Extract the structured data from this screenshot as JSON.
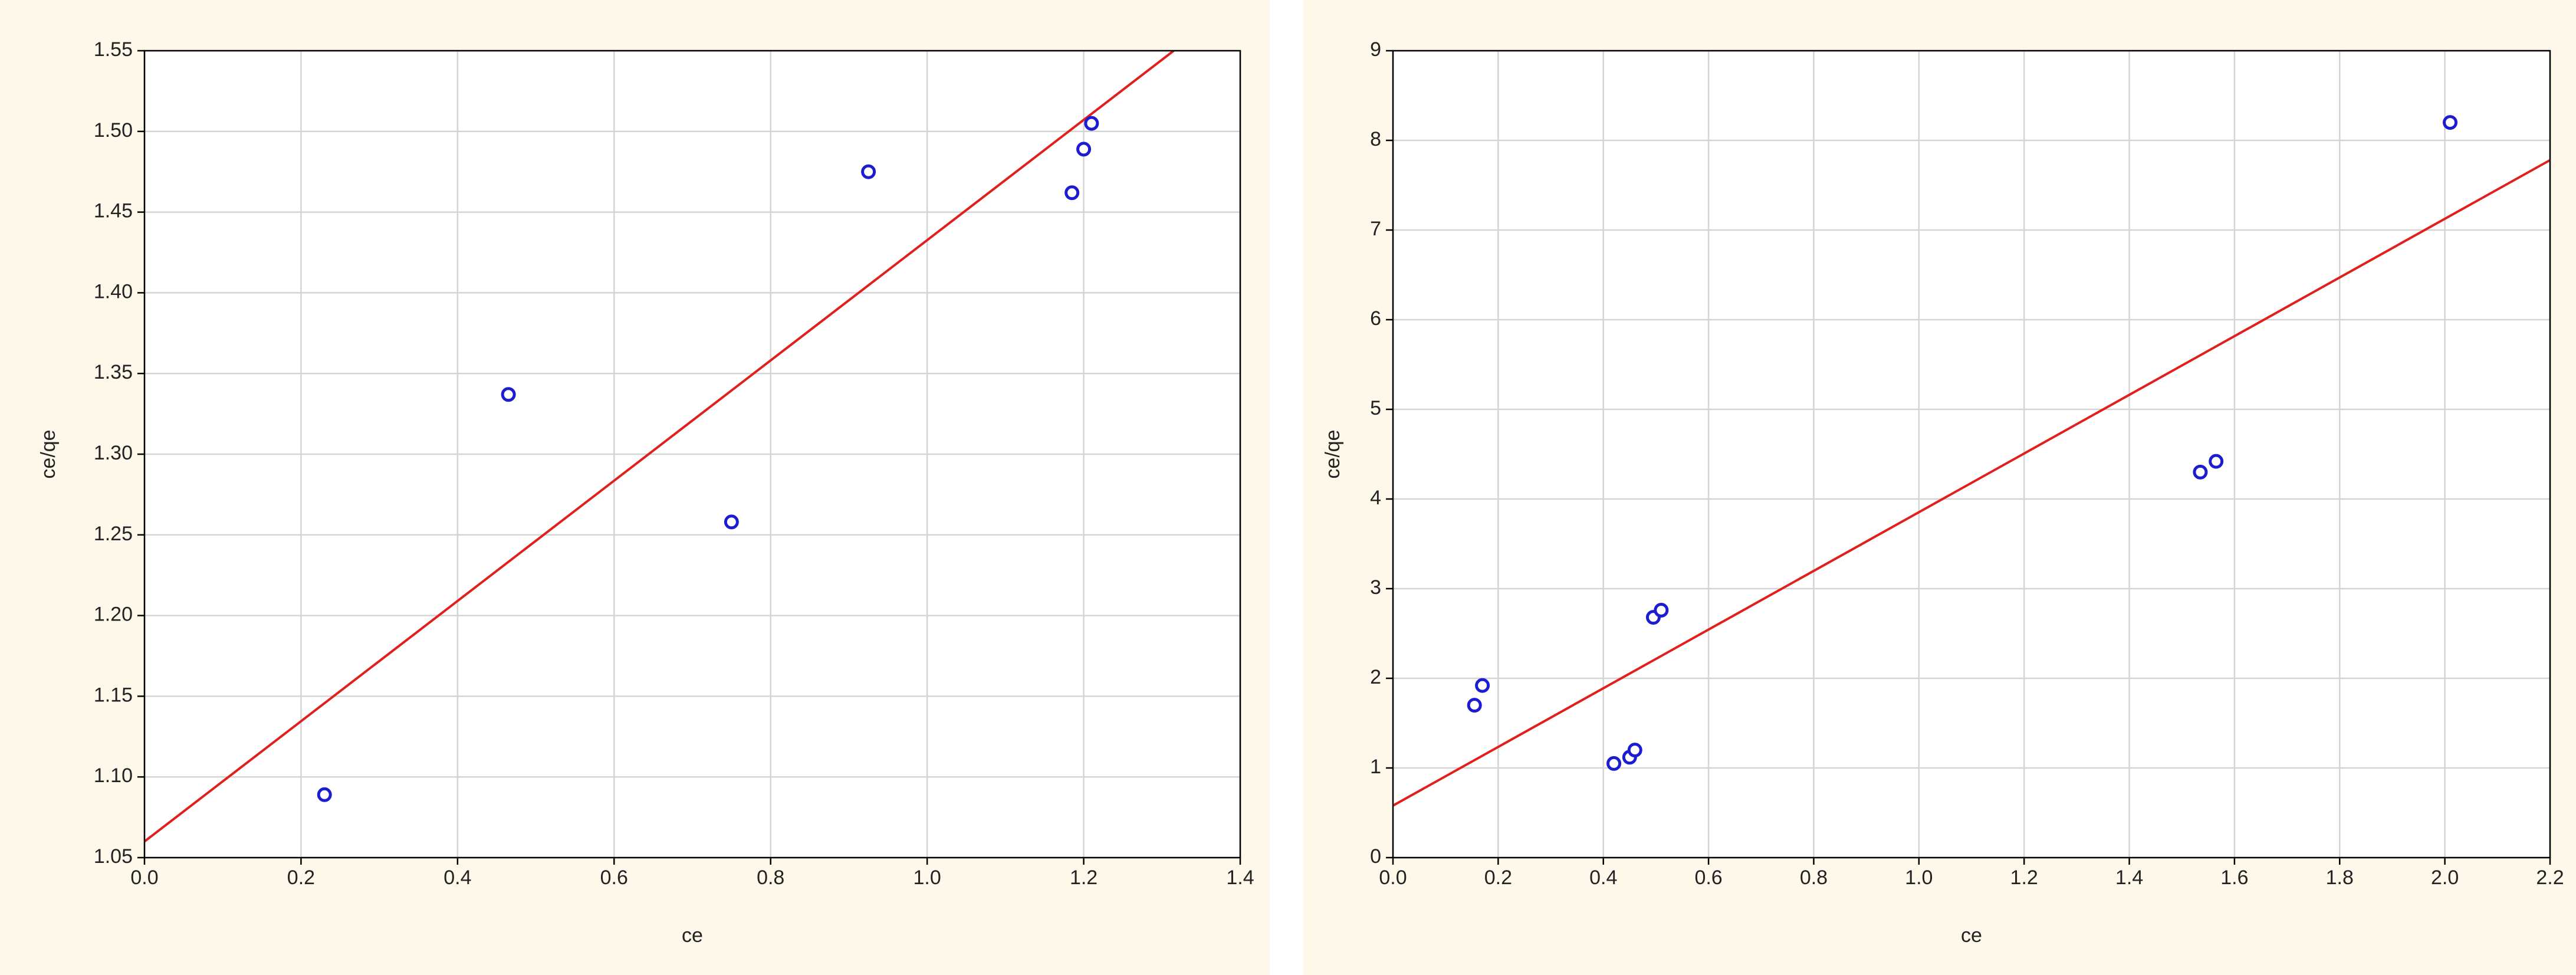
{
  "chart_data": [
    {
      "type": "scatter",
      "xlabel": "ce",
      "ylabel": "ce/qe",
      "xlim": [
        0,
        1.4
      ],
      "ylim": [
        1.05,
        1.55
      ],
      "xticks": [
        {
          "value": 0,
          "label": "0.0"
        },
        0.2,
        0.4,
        0.6,
        0.8,
        {
          "value": 1,
          "label": "1.0"
        },
        1.2,
        1.4
      ],
      "yticks": [
        1.05,
        {
          "value": 1.1,
          "label": "1.10"
        },
        1.15,
        {
          "value": 1.2,
          "label": "1.20"
        },
        1.25,
        {
          "value": 1.3,
          "label": "1.30"
        },
        1.35,
        {
          "value": 1.4,
          "label": "1.40"
        },
        1.45,
        {
          "value": 1.5,
          "label": "1.50"
        },
        1.55
      ],
      "grid": true,
      "points": {
        "color": "#1c1cd0",
        "x": [
          0.23,
          0.465,
          0.75,
          0.925,
          1.185,
          1.2,
          1.21
        ],
        "y": [
          1.089,
          1.337,
          1.258,
          1.475,
          1.462,
          1.489,
          1.505
        ]
      },
      "fit": {
        "color": "#e0201c",
        "x": [
          0,
          1.315
        ],
        "y": [
          1.06,
          1.55
        ]
      }
    },
    {
      "type": "scatter",
      "xlabel": "ce",
      "ylabel": "ce/qe",
      "xlim": [
        0,
        2.2
      ],
      "ylim": [
        0,
        9
      ],
      "xticks": [
        {
          "value": 0,
          "label": "0.0"
        },
        0.2,
        0.4,
        0.6,
        0.8,
        {
          "value": 1,
          "label": "1.0"
        },
        1.2,
        1.4,
        1.6,
        1.8,
        {
          "value": 2,
          "label": "2.0"
        },
        2.2
      ],
      "yticks": [
        0,
        1,
        2,
        3,
        4,
        5,
        6,
        7,
        8,
        9
      ],
      "grid": true,
      "points": {
        "color": "#1c1cd0",
        "x": [
          0.155,
          0.17,
          0.42,
          0.45,
          0.46,
          0.495,
          0.51,
          1.535,
          1.565,
          2.01
        ],
        "y": [
          1.7,
          1.92,
          1.05,
          1.12,
          1.2,
          2.68,
          2.76,
          4.3,
          4.42,
          8.2
        ]
      },
      "fit": {
        "color": "#e0201c",
        "x": [
          0,
          2.2
        ],
        "y": [
          0.58,
          7.78
        ]
      }
    }
  ]
}
